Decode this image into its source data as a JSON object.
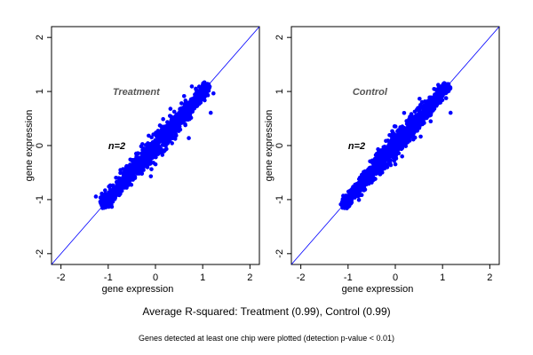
{
  "chart_data": [
    {
      "type": "scatter",
      "xlabel": "gene expression",
      "ylabel": "gene expression",
      "xlim": [
        -2.2,
        2.2
      ],
      "ylim": [
        -2.2,
        2.2
      ],
      "xticks": [
        -2,
        -1,
        0,
        1,
        2
      ],
      "yticks": [
        -2,
        -1,
        0,
        1,
        2
      ],
      "grid": false,
      "reference_line": "y = x",
      "point_color": "#0000ff",
      "line_color": "#0000ff",
      "annotations": [
        {
          "text": "Treatment",
          "x": -1.0,
          "y": 1.0
        },
        {
          "text": "n=2",
          "x": -1.0,
          "y": 0.0
        }
      ],
      "data_summary": {
        "x_range": [
          -1.15,
          1.15
        ],
        "y_range": [
          -1.15,
          1.15
        ],
        "r_squared": 0.99
      }
    },
    {
      "type": "scatter",
      "xlabel": "gene expression",
      "ylabel": "gene expression",
      "xlim": [
        -2.2,
        2.2
      ],
      "ylim": [
        -2.2,
        2.2
      ],
      "xticks": [
        -2,
        -1,
        0,
        1,
        2
      ],
      "yticks": [
        -2,
        -1,
        0,
        1,
        2
      ],
      "grid": false,
      "reference_line": "y = x",
      "point_color": "#0000ff",
      "line_color": "#0000ff",
      "annotations": [
        {
          "text": "Control",
          "x": -1.0,
          "y": 1.0
        },
        {
          "text": "n=2",
          "x": -1.0,
          "y": 0.0
        }
      ],
      "data_summary": {
        "x_range": [
          -1.15,
          1.15
        ],
        "y_range": [
          -1.15,
          1.15
        ],
        "r_squared": 0.99
      }
    }
  ],
  "caption_main": "Average R-squared: Treatment (0.99), Control (0.99)",
  "caption_sub": "Genes detected at least one chip were plotted (detection p-value < 0.01)"
}
